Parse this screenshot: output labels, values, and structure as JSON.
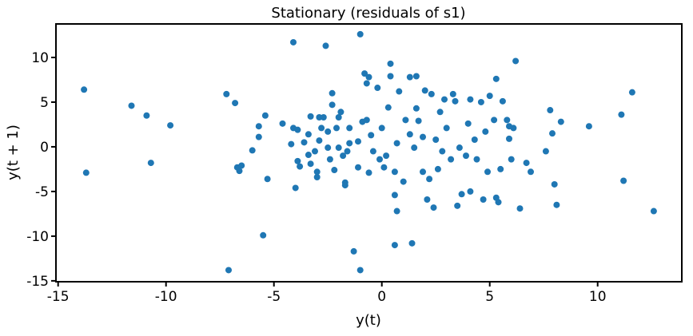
{
  "chart_data": {
    "type": "scatter",
    "title": "Stationary (residuals of s1)",
    "x_label": "y(t)",
    "y_label": "y(t + 1)",
    "color": "#1f77b4",
    "xlim": [
      -15.1,
      13.9
    ],
    "ylim": [
      -15.1,
      13.75
    ],
    "xticks": [
      -15,
      -10,
      -5,
      0,
      5,
      10
    ],
    "yticks": [
      -15,
      -10,
      -5,
      0,
      5,
      10
    ],
    "x": [
      -13.8,
      -13.7,
      -11.6,
      -10.9,
      -10.7,
      -9.8,
      -7.2,
      -6.8,
      -7.1,
      -6.7,
      -6.6,
      -6.5,
      -6.0,
      -5.7,
      -5.7,
      -5.5,
      -5.4,
      -5.3,
      -4.6,
      -4.1,
      -4.2,
      -4.1,
      -3.9,
      -4.0,
      -3.9,
      -3.8,
      -3.6,
      -3.4,
      -3.3,
      -3.4,
      -3.3,
      -3.1,
      -3.0,
      -3.0,
      -2.9,
      -2.8,
      -2.9,
      -2.7,
      -2.6,
      -2.5,
      -2.5,
      -2.4,
      -2.3,
      -2.3,
      -2.1,
      -2.2,
      -2.0,
      -2.0,
      -1.9,
      -1.8,
      -1.7,
      -1.7,
      -1.6,
      -1.5,
      -1.5,
      -1.3,
      -1.1,
      -1.1,
      -1.0,
      -1.0,
      -0.9,
      -0.8,
      -0.7,
      -0.6,
      -0.7,
      -0.6,
      -0.5,
      -0.4,
      -0.2,
      -0.1,
      0,
      0.1,
      0.2,
      0.3,
      0.4,
      0.4,
      0.6,
      0.6,
      0.6,
      0.7,
      0.7,
      0.8,
      1.0,
      1.1,
      1.3,
      1.3,
      1.4,
      1.5,
      1.6,
      1.6,
      1.7,
      1.9,
      1.9,
      2.0,
      2.1,
      2.2,
      2.3,
      2.4,
      2.5,
      2.6,
      2.7,
      2.8,
      2.9,
      3.0,
      3.2,
      3.3,
      3.4,
      3.5,
      3.6,
      3.7,
      3.9,
      4.0,
      4.1,
      4.1,
      4.3,
      4.4,
      4.6,
      4.7,
      4.8,
      4.9,
      5.0,
      5.2,
      5.3,
      5.3,
      5.4,
      5.5,
      5.6,
      5.8,
      5.9,
      5.9,
      6.0,
      6.1,
      6.2,
      6.4,
      6.7,
      6.9,
      7.6,
      7.8,
      7.9,
      8.0,
      8.1,
      8.3,
      9.6,
      11.1,
      11.2,
      11.6,
      12.6
    ],
    "y": [
      6.4,
      -2.9,
      4.6,
      3.5,
      -1.8,
      2.4,
      5.9,
      4.9,
      -13.8,
      -2.3,
      -2.7,
      -2.1,
      -0.4,
      1.1,
      2.3,
      -9.9,
      3.5,
      -3.6,
      2.6,
      11.7,
      0.3,
      2.1,
      1.9,
      -4.6,
      -1.6,
      -2.2,
      0.5,
      1.4,
      3.4,
      -0.9,
      -1.9,
      -0.5,
      -2.8,
      -3.4,
      0.7,
      2.1,
      3.3,
      3.3,
      11.3,
      -0.1,
      1.7,
      -1.4,
      4.7,
      6.0,
      2.1,
      -2.6,
      3.3,
      -0.1,
      3.9,
      -1.0,
      -4.0,
      -4.3,
      -0.5,
      2.1,
      0.4,
      -11.7,
      0.6,
      -2.3,
      12.6,
      -13.8,
      2.8,
      8.2,
      7.1,
      7.8,
      3.0,
      -2.9,
      1.3,
      -0.5,
      6.6,
      -1.4,
      2.1,
      -2.3,
      -1.0,
      4.4,
      9.3,
      7.9,
      -2.8,
      -5.4,
      -11.0,
      0.4,
      -7.2,
      6.2,
      -3.9,
      3.0,
      7.8,
      1.4,
      -10.8,
      -0.1,
      7.9,
      4.3,
      2.9,
      1.1,
      -2.8,
      6.3,
      -5.9,
      -3.6,
      5.9,
      -6.8,
      0.8,
      -2.5,
      3.9,
      -0.5,
      5.3,
      2.1,
      -1.4,
      5.9,
      5.1,
      -6.6,
      -0.1,
      -5.3,
      -1.0,
      2.6,
      5.3,
      -5.0,
      0.8,
      -1.4,
      5.0,
      -5.9,
      1.7,
      -2.8,
      5.7,
      3.0,
      -5.7,
      7.6,
      -6.2,
      -2.5,
      5.1,
      3.0,
      2.3,
      0.9,
      -1.4,
      2.1,
      9.6,
      -6.9,
      -1.8,
      -2.8,
      -0.5,
      4.1,
      1.5,
      -4.2,
      -6.5,
      2.8,
      2.3,
      3.6,
      -3.8,
      6.1,
      -7.2
    ]
  }
}
